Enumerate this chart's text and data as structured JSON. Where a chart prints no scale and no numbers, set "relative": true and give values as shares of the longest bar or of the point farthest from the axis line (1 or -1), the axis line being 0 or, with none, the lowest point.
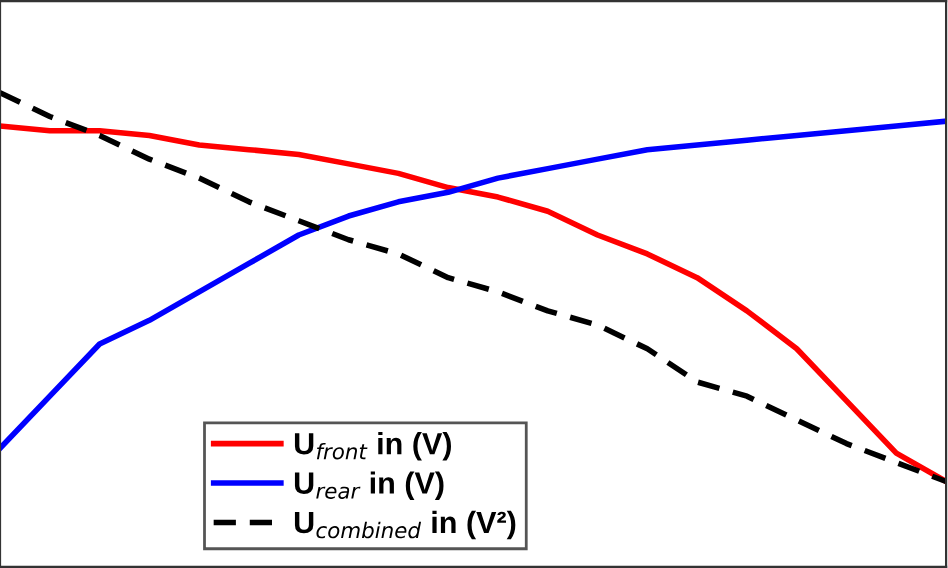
{
  "chart_data": {
    "type": "line",
    "relative": true,
    "legend": "bottom left",
    "grid": false,
    "categories": [
      null,
      null,
      null,
      null,
      null,
      null,
      null,
      null,
      null,
      null,
      null,
      null,
      null,
      null,
      null,
      null,
      null,
      null,
      null,
      null
    ],
    "series": [
      {
        "name": "U$_{front}$ in (V)",
        "color": "#ff0000",
        "line_style": "solid",
        "values": [
          0.93,
          0.92,
          0.92,
          0.91,
          0.89,
          0.88,
          0.87,
          0.85,
          0.83,
          0.8,
          0.78,
          0.75,
          0.7,
          0.66,
          0.61,
          0.54,
          0.46,
          0.35,
          0.24,
          0.18
        ]
      },
      {
        "name": "U$_{rear}$ in (V)",
        "color": "#0000ff",
        "line_style": "solid",
        "values": [
          0.25,
          0.36,
          0.47,
          0.52,
          0.58,
          0.64,
          0.7,
          0.74,
          0.77,
          0.79,
          0.82,
          0.84,
          0.86,
          0.88,
          0.89,
          0.9,
          0.91,
          0.92,
          0.93,
          0.94
        ]
      },
      {
        "name": "U$_{combined}$ in (V²)",
        "color": "#000000",
        "line_style": "dashed",
        "values": [
          1.0,
          0.95,
          0.91,
          0.86,
          0.82,
          0.77,
          0.73,
          0.69,
          0.66,
          0.61,
          0.58,
          0.54,
          0.51,
          0.46,
          0.39,
          0.36,
          0.31,
          0.26,
          0.22,
          0.18
        ]
      }
    ]
  }
}
